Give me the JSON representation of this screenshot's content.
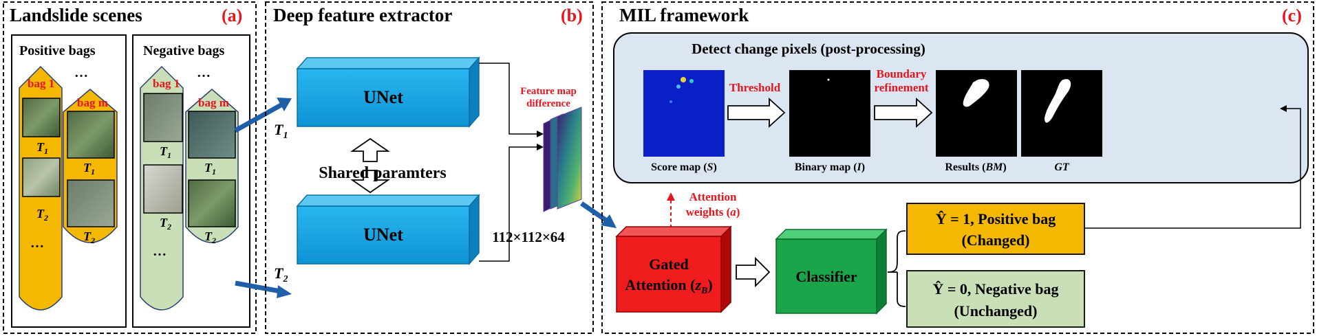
{
  "panel_a": {
    "title": "Landslide scenes",
    "tag": "(a)",
    "positive_title": "Positive bags",
    "negative_title": "Negative bags",
    "bag1": "bag 1",
    "bagm": "bag m",
    "ellipsis": "…",
    "t": "T",
    "sub1": "1",
    "sub2": "2"
  },
  "panel_b": {
    "title": "Deep feature extractor",
    "tag": "(b)",
    "unet": "UNet",
    "shared": "Shared paramters",
    "t1": "T",
    "t2": "T",
    "sub1": "1",
    "sub2": "2",
    "fmd_line1": "Feature map",
    "fmd_line2": "difference",
    "dims": "112×112×64"
  },
  "panel_c": {
    "title": "MIL framework",
    "tag": "(c)",
    "detect_title": "Detect change pixels (post-processing)",
    "threshold": "Threshold",
    "boundary_line1": "Boundary",
    "boundary_line2": "refinement",
    "score_map": "Score map (",
    "score_sym": "S",
    "binary_map": "Binary map (",
    "binary_sym": "I",
    "results": "Results (",
    "results_sym": "BM",
    "close_paren": ")",
    "gt": "GT",
    "attn_line1": "Attention",
    "attn_line2": "weights (",
    "attn_sym": "a",
    "gated_line1": "Gated",
    "gated_line2": "Attention (",
    "gated_sym": "z",
    "gated_sub": "B",
    "classifier": "Classifier",
    "pos_line1": "Ŷ = 1, Positive bag",
    "pos_line2": "(Changed)",
    "neg_line1": "Ŷ = 0, Negative bag",
    "neg_line2": "(Unchanged)"
  },
  "colors": {
    "orange": "#f5b800",
    "light_green": "#c9dfb8",
    "blue_box": "#1aa7e6",
    "red_box": "#ee1c1c",
    "green_box": "#1aa54a",
    "detect_bg": "#dbe6f2",
    "arrow_blue": "#1f5fa8",
    "accent_red": "#e8141b"
  }
}
